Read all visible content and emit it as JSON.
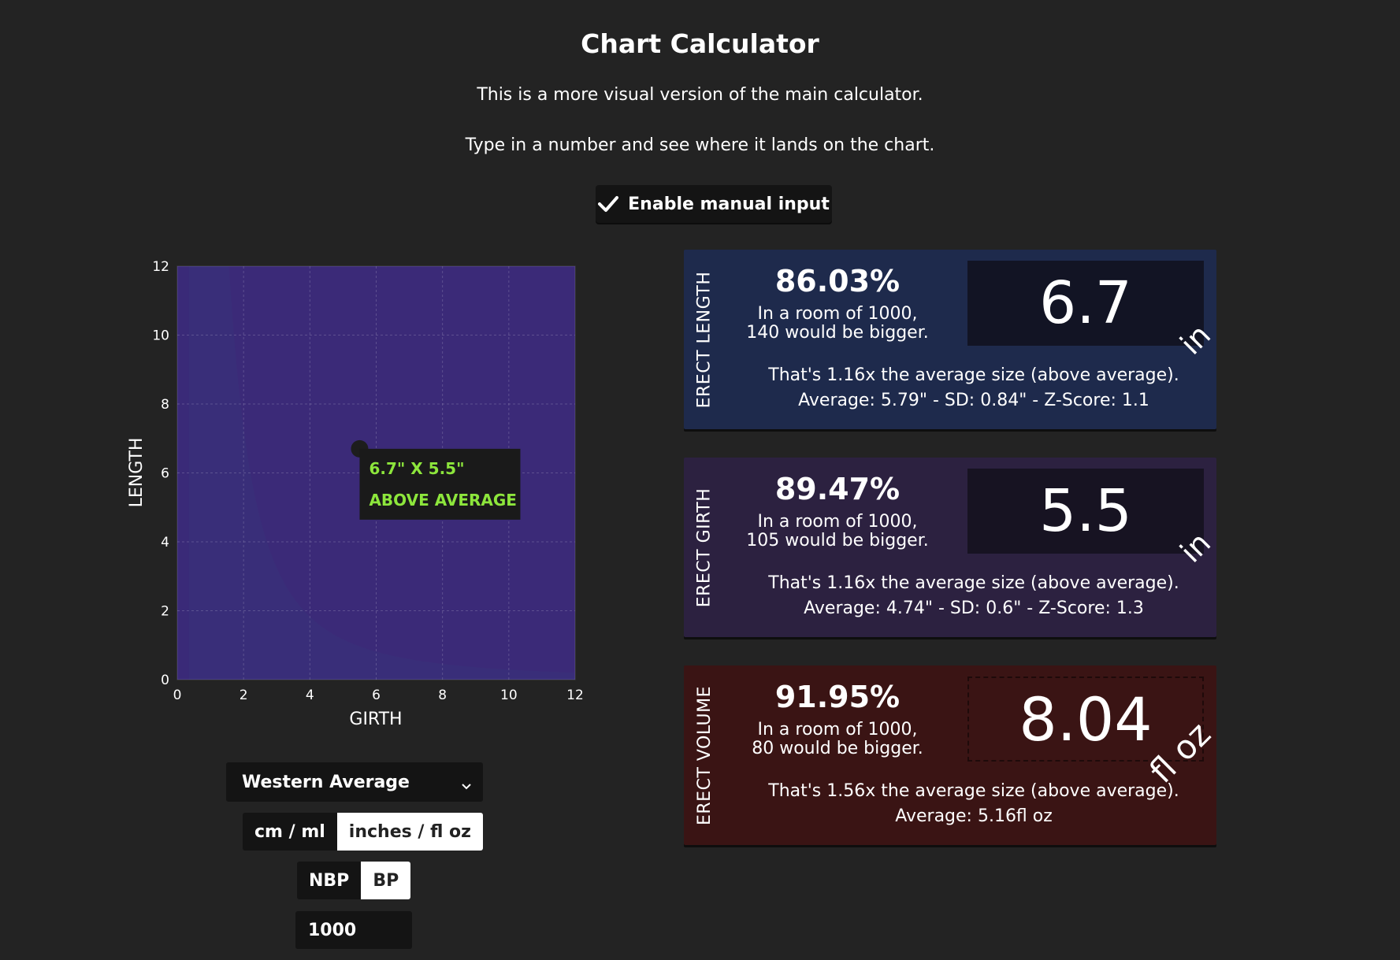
{
  "header": {
    "title": "Chart Calculator",
    "subtitle1": "This is a more visual version of the main calculator.",
    "subtitle2": "Type in a number and see where it lands on the chart."
  },
  "manual_input": {
    "label": "Enable manual input",
    "checked": true
  },
  "chart_data": {
    "type": "area",
    "xlabel": "GIRTH",
    "ylabel": "LENGTH",
    "xlim": [
      0,
      12
    ],
    "ylim": [
      0,
      12
    ],
    "xticks": [
      "0",
      "2",
      "4",
      "6",
      "8",
      "10",
      "12"
    ],
    "yticks": [
      "0",
      "2",
      "4",
      "6",
      "8",
      "10",
      "12"
    ],
    "grid": true,
    "bands_colors": [
      "#3a2a78",
      "#355a84",
      "#2f7888",
      "#2e8c6a",
      "#3c8a3a",
      "#7a8a3a",
      "#8a6a3a",
      "#6a3a5a",
      "#50306e"
    ],
    "point": {
      "x": 5.5,
      "y": 6.7
    },
    "tooltip": {
      "line1": "6.7\" X 5.5\"",
      "line2": "ABOVE AVERAGE"
    }
  },
  "controls": {
    "region": "Western Average",
    "units": [
      "cm / ml",
      "inches / fl oz"
    ],
    "units_active": 1,
    "bp": [
      "NBP",
      "BP"
    ],
    "bp_active": 1,
    "room_size": "1000"
  },
  "cards": {
    "length": {
      "side_label": "ERECT LENGTH",
      "percent": "86.03%",
      "room_line1": "In a room of 1000,",
      "room_line2": "140 would be bigger.",
      "value": "6.7",
      "unit": "in",
      "info1": "That's 1.16x the average size (above average).",
      "info2": "Average: 5.79\" - SD: 0.84\" - Z-Score: 1.1"
    },
    "girth": {
      "side_label": "ERECT GIRTH",
      "percent": "89.47%",
      "room_line1": "In a room of 1000,",
      "room_line2": "105 would be bigger.",
      "value": "5.5",
      "unit": "in",
      "info1": "That's 1.16x the average size (above average).",
      "info2": "Average: 4.74\" - SD: 0.6\" - Z-Score: 1.3"
    },
    "volume": {
      "side_label": "ERECT VOLUME",
      "percent": "91.95%",
      "room_line1": "In a room of 1000,",
      "room_line2": "80 would be bigger.",
      "value": "8.04",
      "unit": "fl oz",
      "info1": "That's 1.56x the average size (above average).",
      "info2": "Average: 5.16fl oz"
    }
  }
}
